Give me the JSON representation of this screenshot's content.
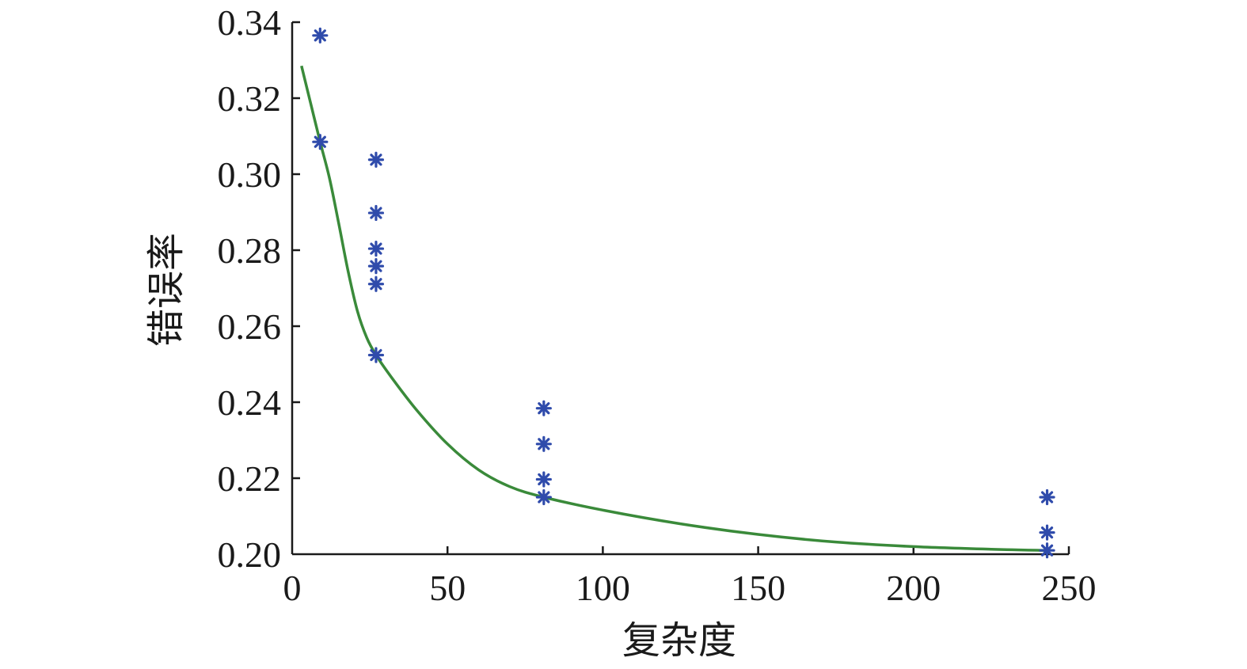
{
  "chart_data": {
    "type": "scatter",
    "xlabel": "复杂度",
    "ylabel": "错误率",
    "xlim": [
      0,
      250
    ],
    "ylim": [
      0.2,
      0.34
    ],
    "x_ticks": [
      0,
      50,
      100,
      150,
      200,
      250
    ],
    "x_tick_labels": [
      "0",
      "50",
      "100",
      "150",
      "200",
      "250"
    ],
    "y_ticks": [
      0.2,
      0.22,
      0.24,
      0.26,
      0.28,
      0.3,
      0.32,
      0.34
    ],
    "y_tick_labels": [
      "0.20",
      "0.22",
      "0.24",
      "0.26",
      "0.28",
      "0.30",
      "0.32",
      "0.34"
    ],
    "grid": false,
    "colors": {
      "points": "#2f4bab",
      "fit_line": "#3a8a3a",
      "axis": "#1a1a1a"
    },
    "series": [
      {
        "type": "scatter",
        "marker": "asterisk",
        "points": [
          {
            "x": 9,
            "y": 0.3365
          },
          {
            "x": 9,
            "y": 0.3085
          },
          {
            "x": 27,
            "y": 0.3038
          },
          {
            "x": 27,
            "y": 0.2898
          },
          {
            "x": 27,
            "y": 0.2804
          },
          {
            "x": 27,
            "y": 0.2758
          },
          {
            "x": 27,
            "y": 0.2711
          },
          {
            "x": 27,
            "y": 0.2524
          },
          {
            "x": 81,
            "y": 0.2384
          },
          {
            "x": 81,
            "y": 0.229
          },
          {
            "x": 81,
            "y": 0.2197
          },
          {
            "x": 81,
            "y": 0.215
          },
          {
            "x": 243,
            "y": 0.215
          },
          {
            "x": 243,
            "y": 0.2057
          },
          {
            "x": 243,
            "y": 0.201
          }
        ]
      },
      {
        "type": "line",
        "points": [
          {
            "x": 3,
            "y": 0.3285
          },
          {
            "x": 6,
            "y": 0.3185
          },
          {
            "x": 9,
            "y": 0.3085
          },
          {
            "x": 12,
            "y": 0.299
          },
          {
            "x": 15,
            "y": 0.287
          },
          {
            "x": 18,
            "y": 0.2745
          },
          {
            "x": 21,
            "y": 0.264
          },
          {
            "x": 24,
            "y": 0.257
          },
          {
            "x": 27,
            "y": 0.2524
          },
          {
            "x": 32,
            "y": 0.2465
          },
          {
            "x": 40,
            "y": 0.238
          },
          {
            "x": 50,
            "y": 0.229
          },
          {
            "x": 60,
            "y": 0.2222
          },
          {
            "x": 70,
            "y": 0.2178
          },
          {
            "x": 81,
            "y": 0.215
          },
          {
            "x": 100,
            "y": 0.2116
          },
          {
            "x": 125,
            "y": 0.208
          },
          {
            "x": 150,
            "y": 0.2052
          },
          {
            "x": 175,
            "y": 0.2032
          },
          {
            "x": 200,
            "y": 0.202
          },
          {
            "x": 225,
            "y": 0.2013
          },
          {
            "x": 243,
            "y": 0.201
          }
        ]
      }
    ]
  }
}
